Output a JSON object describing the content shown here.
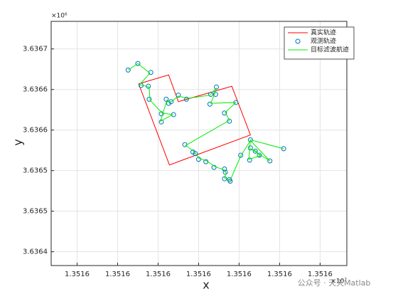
{
  "chart_data": {
    "type": "line",
    "x_label": "x",
    "y_label": "y",
    "x_multiplier": "×10⁷",
    "y_multiplier": "×10⁶",
    "watermark": "公众号 · 天天Matlab",
    "xlim": [
      13515818,
      13516183
    ],
    "ylim": [
      3636433,
      3636734
    ],
    "xticks": [
      {
        "value": 13515850,
        "label": "1.3516"
      },
      {
        "value": 13515900,
        "label": "1.3516"
      },
      {
        "value": 13515950,
        "label": "1.3516"
      },
      {
        "value": 13516000,
        "label": "1.3516"
      },
      {
        "value": 13516050,
        "label": "1.3516"
      },
      {
        "value": 13516100,
        "label": "1.3516"
      },
      {
        "value": 13516150,
        "label": "1.3516"
      }
    ],
    "yticks": [
      {
        "value": 3636450,
        "label": "3.6364"
      },
      {
        "value": 3636500,
        "label": "3.6365"
      },
      {
        "value": 3636550,
        "label": "3.6365"
      },
      {
        "value": 3636600,
        "label": "3.6366"
      },
      {
        "value": 3636650,
        "label": "3.6366"
      },
      {
        "value": 3636700,
        "label": "3.6367"
      }
    ],
    "grid": true,
    "legend": "top-right",
    "series": [
      {
        "name": "真实轨迹",
        "color": "#ff0000",
        "style": "line",
        "x": [
          13515926,
          13515963,
          13515975,
          13516041,
          13516064,
          13515964,
          13515926
        ],
        "values": [
          3636657,
          3636668,
          3636635,
          3636654,
          3636594,
          3636557,
          3636657
        ]
      },
      {
        "name": "观测轨迹",
        "color": "#0072bd",
        "style": "marker",
        "x": [
          13515913,
          13515925,
          13515941,
          13515929,
          13515938,
          13515939,
          13515954,
          13515969,
          13515954,
          13515960,
          13515963,
          13515966,
          13515975,
          13515985,
          13516015,
          13516022,
          13516021,
          13516014,
          13516046,
          13516032,
          13516038,
          13515983,
          13515993,
          13515996,
          13516000,
          13516009,
          13516019,
          13516032,
          13516033,
          13516032,
          13516038,
          13516039,
          13516052,
          13516064,
          13516064,
          13516070,
          13516075,
          13516063,
          13516088,
          13516105
        ],
        "values": [
          3636674,
          3636682,
          3636671,
          3636655,
          3636654,
          3636638,
          3636620,
          3636619,
          3636610,
          3636638,
          3636633,
          3636635,
          3636643,
          3636638,
          3636644,
          3636653,
          3636644,
          3636632,
          3636634,
          3636621,
          3636611,
          3636582,
          3636573,
          3636571,
          3636564,
          3636561,
          3636554,
          3636552,
          3636548,
          3636540,
          3636539,
          3636537,
          3636569,
          3636588,
          3636578,
          3636574,
          3636569,
          3636563,
          3636562,
          3636577
        ]
      },
      {
        "name": "目标滤波航迹",
        "color": "#00ee00",
        "style": "line",
        "x": [
          13515913,
          13515925,
          13515940,
          13515927,
          13515939,
          13515940,
          13515955,
          13515968,
          13515953,
          13515961,
          13515965,
          13515975,
          13515986,
          13516014,
          13516022,
          13516020,
          13516015,
          13516046,
          13516033,
          13516038,
          13515984,
          13515994,
          13516001,
          13516010,
          13516020,
          13516031,
          13516034,
          13516032,
          13516039,
          13516052,
          13516064,
          13516088,
          13516064,
          13516071,
          13516076,
          13516062,
          13516064,
          13516105
        ],
        "values": [
          3636674,
          3636682,
          3636670,
          3636656,
          3636653,
          3636637,
          3636621,
          3636619,
          3636611,
          3636637,
          3636634,
          3636642,
          3636639,
          3636643,
          3636652,
          3636645,
          3636633,
          3636634,
          3636622,
          3636612,
          3636581,
          3636574,
          3636565,
          3636562,
          3636555,
          3636551,
          3636547,
          3636541,
          3636538,
          3636568,
          3636587,
          3636562,
          3636577,
          3636574,
          3636568,
          3636564,
          3636588,
          3636577
        ]
      }
    ]
  }
}
